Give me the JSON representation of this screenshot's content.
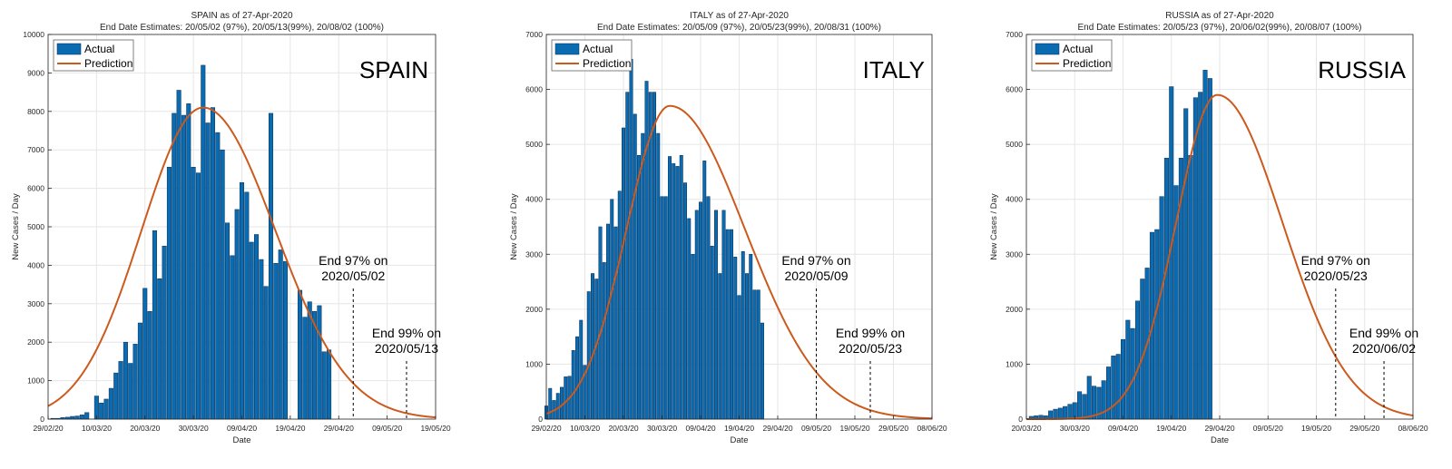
{
  "chart_data": [
    {
      "type": "bar",
      "title": "SPAIN as of 27-Apr-2020",
      "subtitle": "End Date Estimates: 20/05/02 (97%), 20/05/13(99%), 20/08/02 (100%)",
      "big_label": "SPAIN",
      "xlabel": "Date",
      "ylabel": "New Cases / Day",
      "ylim": [
        0,
        10000
      ],
      "yticks": [
        0,
        1000,
        2000,
        3000,
        4000,
        5000,
        6000,
        7000,
        8000,
        9000,
        10000
      ],
      "xticks": [
        "29/02/20",
        "10/03/20",
        "20/03/20",
        "30/03/20",
        "09/04/20",
        "19/04/20",
        "29/04/20",
        "09/05/20",
        "19/05/20"
      ],
      "x_start": "2020-02-29",
      "x_days": 80,
      "grid": true,
      "legend": {
        "position": "top-left",
        "entries": [
          "Actual",
          "Prediction"
        ]
      },
      "series": [
        {
          "name": "Actual",
          "type": "bar",
          "start": "2020-03-01",
          "values": [
            20,
            20,
            40,
            50,
            70,
            80,
            110,
            170,
            0,
            600,
            420,
            520,
            800,
            1200,
            1500,
            2000,
            1450,
            1950,
            2500,
            3400,
            2800,
            4900,
            3650,
            4500,
            6550,
            7950,
            8550,
            7900,
            8200,
            6550,
            6400,
            9200,
            7700,
            8100,
            7450,
            7000,
            5100,
            4250,
            5450,
            6150,
            5900,
            4600,
            4800,
            4150,
            3450,
            7950,
            4050,
            4400,
            4100,
            0,
            0,
            3350,
            2650,
            3050,
            2800,
            2950,
            1750,
            1800
          ]
        },
        {
          "name": "Prediction",
          "type": "line",
          "peak_day": 32,
          "peak": 8100,
          "sigma_left": 12.7,
          "sigma_right": 14.9
        }
      ],
      "annotations": [
        {
          "lines": [
            "End 97% on",
            "2020/05/02"
          ],
          "day": 63
        },
        {
          "lines": [
            "End 99% on",
            "2020/05/13"
          ],
          "day": 74
        }
      ]
    },
    {
      "type": "bar",
      "title": "ITALY as of 27-Apr-2020",
      "subtitle": "End Date Estimates: 20/05/09 (97%), 20/05/23(99%), 20/08/31 (100%)",
      "big_label": "ITALY",
      "xlabel": "Date",
      "ylabel": "New Cases / Day",
      "ylim": [
        0,
        7000
      ],
      "yticks": [
        0,
        1000,
        2000,
        3000,
        4000,
        5000,
        6000,
        7000
      ],
      "xticks": [
        "29/02/20",
        "10/03/20",
        "20/03/20",
        "30/03/20",
        "09/04/20",
        "19/04/20",
        "29/04/20",
        "09/05/20",
        "19/05/20",
        "29/05/20",
        "08/06/20"
      ],
      "x_start": "2020-02-29",
      "x_days": 100,
      "grid": true,
      "legend": {
        "position": "top-left",
        "entries": [
          "Actual",
          "Prediction"
        ]
      },
      "series": [
        {
          "name": "Actual",
          "type": "bar",
          "start": "2020-02-29",
          "values": [
            240,
            560,
            340,
            470,
            580,
            770,
            780,
            1250,
            1500,
            1800,
            980,
            2320,
            2650,
            2550,
            3500,
            2850,
            3550,
            4000,
            3500,
            4150,
            5300,
            5950,
            6550,
            5550,
            4800,
            5200,
            6150,
            5950,
            5950,
            5200,
            4050,
            4050,
            4780,
            4650,
            4600,
            4800,
            4300,
            3650,
            3000,
            3800,
            3950,
            4700,
            4050,
            3150,
            3800,
            2650,
            3800,
            3450,
            3450,
            2950,
            2250,
            3050,
            2650,
            3000,
            2350,
            2350,
            1750
          ]
        },
        {
          "name": "Prediction",
          "type": "line",
          "peak_day": 32,
          "peak": 5700,
          "sigma_left": 11.2,
          "sigma_right": 19.5
        }
      ],
      "annotations": [
        {
          "lines": [
            "End 97% on",
            "2020/05/09"
          ],
          "day": 70
        },
        {
          "lines": [
            "End 99% on",
            "2020/05/23"
          ],
          "day": 84
        }
      ]
    },
    {
      "type": "bar",
      "title": "RUSSIA as of 27-Apr-2020",
      "subtitle": "End Date Estimates: 20/05/23 (97%), 20/06/02(99%), 20/08/07 (100%)",
      "big_label": "RUSSIA",
      "xlabel": "Date",
      "ylabel": "New Cases / Day",
      "ylim": [
        0,
        7000
      ],
      "yticks": [
        0,
        1000,
        2000,
        3000,
        4000,
        5000,
        6000,
        7000
      ],
      "xticks": [
        "20/03/20",
        "30/03/20",
        "09/04/20",
        "19/04/20",
        "29/04/20",
        "09/05/20",
        "19/05/20",
        "29/05/20",
        "08/06/20"
      ],
      "x_start": "2020-03-20",
      "x_days": 80,
      "grid": true,
      "legend": {
        "position": "top-left",
        "entries": [
          "Actual",
          "Prediction"
        ]
      },
      "series": [
        {
          "name": "Actual",
          "type": "bar",
          "start": "2020-03-21",
          "values": [
            50,
            60,
            70,
            60,
            150,
            180,
            200,
            230,
            270,
            300,
            500,
            450,
            780,
            600,
            580,
            700,
            950,
            1150,
            1180,
            1450,
            1800,
            1650,
            2150,
            2550,
            2750,
            3400,
            3450,
            4050,
            4750,
            6050,
            4250,
            4750,
            5650,
            4800,
            5850,
            5950,
            6350,
            6200
          ]
        },
        {
          "name": "Prediction",
          "type": "line",
          "peak_day": 39.5,
          "peak": 5900,
          "sigma_left": 8.5,
          "sigma_right": 13.5
        }
      ],
      "annotations": [
        {
          "lines": [
            "End 97% on",
            "2020/05/23"
          ],
          "day": 64
        },
        {
          "lines": [
            "End 99% on",
            "2020/06/02"
          ],
          "day": 74
        }
      ]
    }
  ]
}
